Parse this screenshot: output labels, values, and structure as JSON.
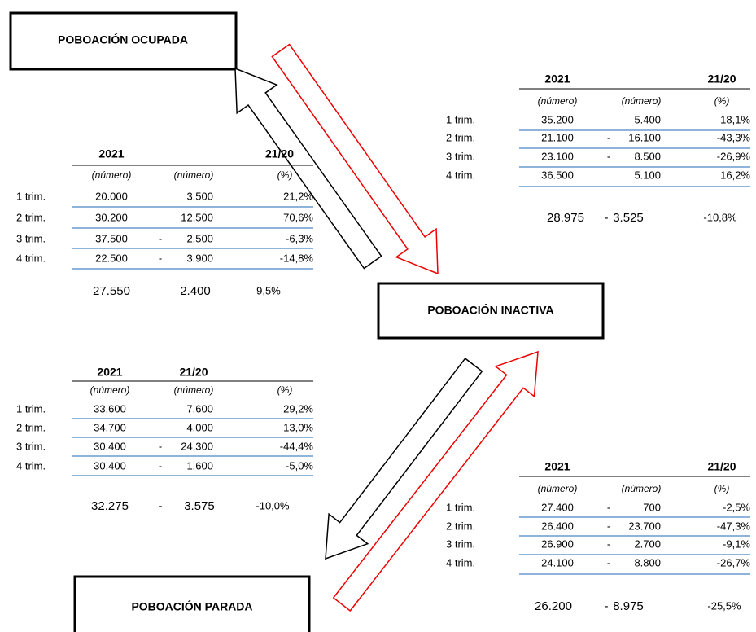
{
  "boxes": [
    {
      "label": "POBOACIÓN OCUPADA"
    },
    {
      "label": "POBOACIÓN INACTIVA"
    },
    {
      "label": "POBOACIÓN PARADA"
    }
  ],
  "tables": [
    {
      "year": "2021",
      "period": "21/20",
      "units": [
        "(número)",
        "(número)",
        "(%)"
      ],
      "rows": [
        {
          "label": "1 trim.",
          "value": "20.000",
          "change": "3.500",
          "pct": "21,2%"
        },
        {
          "label": "2 trim.",
          "value": "30.200",
          "change": "12.500",
          "pct": "70,6%"
        },
        {
          "label": "3 trim.",
          "value": "37.500",
          "sign": "-",
          "change": "2.500",
          "pct": "-6,3%"
        },
        {
          "label": "4 trim.",
          "value": "22.500",
          "sign": "-",
          "change": "3.900",
          "pct": "-14,8%"
        }
      ],
      "total": {
        "value": "27.550",
        "change": "2.400",
        "pct": "9,5%"
      }
    },
    {
      "year": "2021",
      "period": "21/20",
      "units": [
        "(número)",
        "(número)",
        "(%)"
      ],
      "rows": [
        {
          "label": "1 trim.",
          "value": "35.200",
          "change": "5.400",
          "pct": "18,1%"
        },
        {
          "label": "2 trim.",
          "value": "21.100",
          "sign": "-",
          "change": "16.100",
          "pct": "-43,3%"
        },
        {
          "label": "3 trim.",
          "value": "23.100",
          "sign": "-",
          "change": "8.500",
          "pct": "-26,9%"
        },
        {
          "label": "4 trim.",
          "value": "36.500",
          "change": "5.100",
          "pct": "16,2%"
        }
      ],
      "total": {
        "value": "28.975",
        "sign": "-",
        "change": "3.525",
        "pct": "-10,8%"
      }
    },
    {
      "year": "2021",
      "period": "21/20",
      "units": [
        "(número)",
        "(número)",
        "(%)"
      ],
      "rows": [
        {
          "label": "1 trim.",
          "value": "33.600",
          "change": "7.600",
          "pct": "29,2%"
        },
        {
          "label": "2 trim.",
          "value": "34.700",
          "change": "4.000",
          "pct": "13,0%"
        },
        {
          "label": "3 trim.",
          "value": "30.400",
          "sign": "-",
          "change": "24.300",
          "pct": "-44,4%"
        },
        {
          "label": "4 trim.",
          "value": "30.400",
          "sign": "-",
          "change": "1.600",
          "pct": "-5,0%"
        }
      ],
      "total": {
        "value": "32.275",
        "sign": "-",
        "change": "3.575",
        "pct": "-10,0%"
      }
    },
    {
      "year": "2021",
      "period": "21/20",
      "units": [
        "(número)",
        "(número)",
        "(%)"
      ],
      "rows": [
        {
          "label": "1 trim.",
          "value": "27.400",
          "sign": "-",
          "change": "700",
          "pct": "-2,5%"
        },
        {
          "label": "2 trim.",
          "value": "26.400",
          "sign": "-",
          "change": "23.700",
          "pct": "-47,3%"
        },
        {
          "label": "3 trim.",
          "value": "26.900",
          "sign": "-",
          "change": "2.700",
          "pct": "-9,1%"
        },
        {
          "label": "4 trim.",
          "value": "24.100",
          "sign": "-",
          "change": "8.800",
          "pct": "-26,7%"
        }
      ],
      "total": {
        "value": "26.200",
        "sign": "-",
        "change": "8.975",
        "pct": "-25,5%"
      }
    }
  ]
}
